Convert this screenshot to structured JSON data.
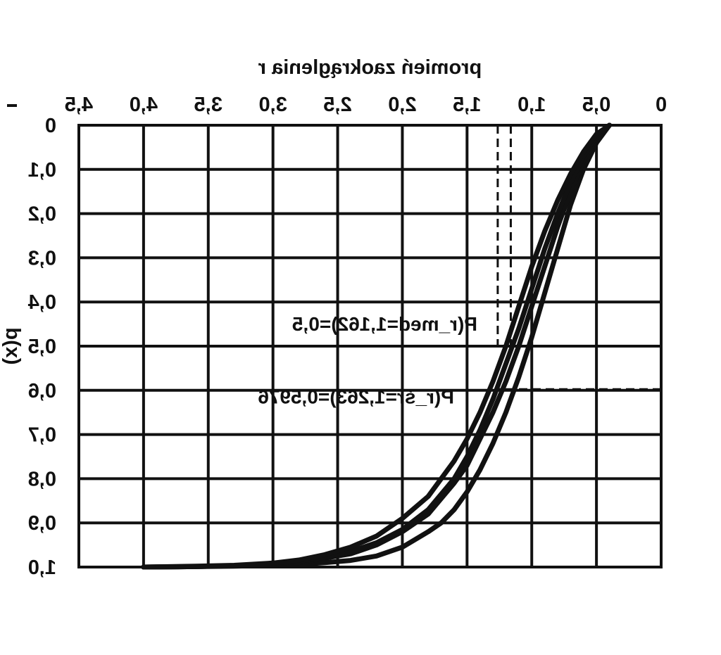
{
  "chart_data": {
    "type": "line",
    "mirrored": true,
    "xlabel": "promień zaokrąglenia r",
    "ylabel": "p(x)",
    "xlim": [
      0,
      4.5
    ],
    "ylim": [
      0,
      1.0
    ],
    "x_ticks": [
      "0",
      "0,5",
      "1,0",
      "1,5",
      "2,0",
      "2,5",
      "3,0",
      "3,5",
      "4,0",
      "4,5"
    ],
    "y_ticks": [
      "0",
      "0,1",
      "0,2",
      "0,3",
      "0,4",
      "0,5",
      "0,6",
      "0,7",
      "0,8",
      "0,9",
      "1,0"
    ],
    "grid": true,
    "series": [
      {
        "x": [
          0.4,
          0.5,
          0.6,
          0.7,
          0.8,
          0.9,
          1.0,
          1.1,
          1.2,
          1.3,
          1.4,
          1.5,
          1.6,
          1.7,
          1.8,
          2.0,
          2.2,
          2.4,
          2.6,
          2.8,
          3.0,
          3.3,
          3.6,
          4.0
        ],
        "y": [
          0.0,
          0.04,
          0.1,
          0.18,
          0.28,
          0.38,
          0.48,
          0.57,
          0.65,
          0.72,
          0.78,
          0.83,
          0.87,
          0.9,
          0.92,
          0.955,
          0.975,
          0.985,
          0.99,
          0.994,
          0.996,
          0.998,
          0.999,
          1.0
        ]
      },
      {
        "x": [
          0.4,
          0.5,
          0.6,
          0.7,
          0.8,
          0.9,
          1.0,
          1.1,
          1.2,
          1.3,
          1.4,
          1.5,
          1.6,
          1.8,
          2.0,
          2.2,
          2.4,
          2.6,
          2.8,
          3.0,
          3.3,
          3.6,
          4.0
        ],
        "y": [
          0.0,
          0.03,
          0.08,
          0.15,
          0.23,
          0.32,
          0.41,
          0.5,
          0.58,
          0.65,
          0.71,
          0.77,
          0.81,
          0.88,
          0.92,
          0.95,
          0.97,
          0.98,
          0.99,
          0.994,
          0.997,
          0.999,
          1.0
        ]
      },
      {
        "x": [
          0.4,
          0.5,
          0.6,
          0.7,
          0.8,
          0.9,
          1.0,
          1.1,
          1.2,
          1.3,
          1.4,
          1.5,
          1.6,
          1.8,
          2.0,
          2.2,
          2.4,
          2.6,
          2.8,
          3.0,
          3.3,
          3.6,
          4.0
        ],
        "y": [
          0.0,
          0.025,
          0.07,
          0.13,
          0.2,
          0.28,
          0.37,
          0.46,
          0.54,
          0.62,
          0.69,
          0.75,
          0.8,
          0.87,
          0.915,
          0.945,
          0.965,
          0.978,
          0.987,
          0.993,
          0.997,
          0.999,
          1.0
        ]
      },
      {
        "x": [
          0.4,
          0.5,
          0.6,
          0.7,
          0.8,
          0.9,
          1.0,
          1.1,
          1.2,
          1.3,
          1.4,
          1.5,
          1.6,
          1.8,
          2.0,
          2.2,
          2.4,
          2.6,
          2.8,
          3.0,
          3.3,
          3.6,
          4.0
        ],
        "y": [
          0.0,
          0.02,
          0.06,
          0.11,
          0.17,
          0.24,
          0.32,
          0.41,
          0.5,
          0.58,
          0.65,
          0.71,
          0.76,
          0.84,
          0.89,
          0.93,
          0.955,
          0.972,
          0.984,
          0.991,
          0.996,
          0.998,
          1.0
        ]
      }
    ],
    "reference_lines": [
      {
        "orientation": "vertical",
        "x": 1.162,
        "y_from": 0,
        "y_to": 0.5,
        "style": "dashed"
      },
      {
        "orientation": "vertical",
        "x": 1.263,
        "y_from": 0,
        "y_to": 0.5,
        "style": "dashed"
      },
      {
        "orientation": "horizontal",
        "y": 0.5976,
        "x_from": 0,
        "x_to": 1.263,
        "style": "dashed"
      }
    ],
    "annotations": [
      {
        "text": "P(r_med=1,162)=0,5",
        "x": 1.42,
        "y": 0.465
      },
      {
        "text": "P(r_śr=1,263)=0,5976",
        "x": 1.6,
        "y": 0.63
      }
    ]
  }
}
